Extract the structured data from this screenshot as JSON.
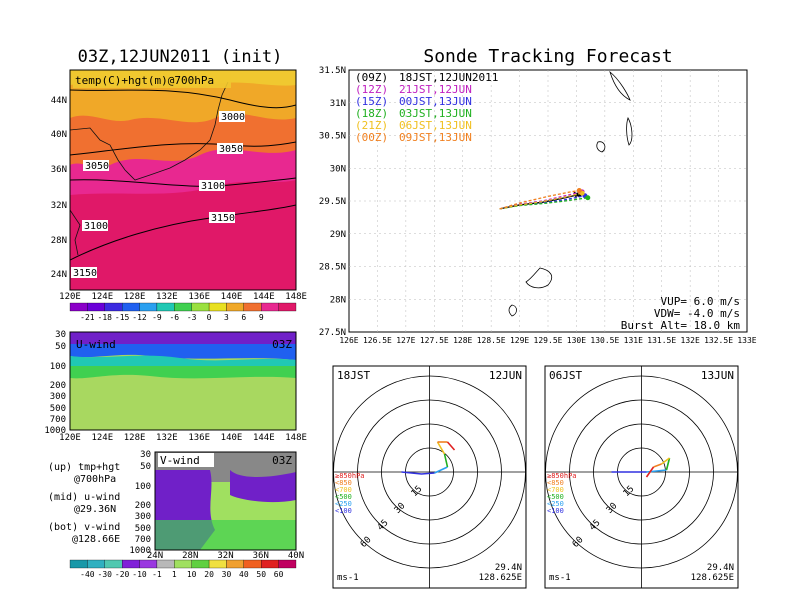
{
  "left": {
    "title": "03Z,12JUN2011 (init)",
    "map": {
      "label": "temp(C)+hgt(m)@700hPa",
      "lat_ticks": [
        "44N",
        "40N",
        "36N",
        "32N",
        "28N",
        "24N"
      ],
      "lon_ticks": [
        "120E",
        "124E",
        "128E",
        "132E",
        "136E",
        "140E",
        "144E",
        "148E"
      ],
      "contours": [
        "3000",
        "3050",
        "3050",
        "3100",
        "3100",
        "3150",
        "3150"
      ],
      "colorbar_labels": [
        "-21",
        "-18",
        "-15",
        "-12",
        "-9",
        "-6",
        "-3",
        "0",
        "3",
        "6",
        "9"
      ],
      "colorbar_colors": [
        "#8b00c8",
        "#6a00d8",
        "#3c2ae0",
        "#2060f0",
        "#2aa0f0",
        "#20c8b4",
        "#40d050",
        "#9ae040",
        "#e8e020",
        "#f0a828",
        "#f07030",
        "#e82890",
        "#e01868"
      ]
    },
    "uwind": {
      "label": "U-wind",
      "time": "03Z",
      "p_ticks": [
        "30",
        "50",
        "100",
        "200",
        "300",
        "500",
        "700",
        "1000"
      ],
      "lon_ticks": [
        "120E",
        "124E",
        "128E",
        "132E",
        "136E",
        "140E",
        "144E",
        "148E"
      ]
    },
    "vwind": {
      "label": "V-wind",
      "time": "03Z",
      "p_ticks": [
        "30",
        "50",
        "100",
        "200",
        "300",
        "500",
        "700",
        "1000"
      ],
      "lat_ticks": [
        "24N",
        "28N",
        "32N",
        "36N",
        "40N"
      ],
      "colorbar_labels": [
        "-40",
        "-30",
        "-20",
        "-10",
        "-1",
        "1",
        "10",
        "20",
        "30",
        "40",
        "50",
        "60"
      ],
      "colorbar_colors": [
        "#1898a8",
        "#30b0c0",
        "#50c8b0",
        "#8020d8",
        "#9a38e0",
        "#b8b8b8",
        "#a0e060",
        "#60d040",
        "#f0e040",
        "#f0a030",
        "#f06020",
        "#e02020",
        "#c00060"
      ]
    },
    "legend": {
      "up": "(up) tmp+hgt",
      "up_sub": "@700hPa",
      "mid": "(mid) u-wind",
      "mid_sub": "@29.36N",
      "bot": "(bot) v-wind",
      "bot_sub": "@128.66E"
    }
  },
  "right": {
    "title": "Sonde Tracking Forecast",
    "lat_ticks": [
      "31.5N",
      "31N",
      "30.5N",
      "30N",
      "29.5N",
      "29N",
      "28.5N",
      "28N",
      "27.5N"
    ],
    "lon_ticks": [
      "126E",
      "126.5E",
      "127E",
      "127.5E",
      "128E",
      "128.5E",
      "129E",
      "129.5E",
      "130E",
      "130.5E",
      "131E",
      "131.5E",
      "132E",
      "132.5E",
      "133E"
    ],
    "launches": [
      {
        "utc": "(09Z)",
        "jst": "18JST,12JUN2011",
        "color": "#000000"
      },
      {
        "utc": "(12Z)",
        "jst": "21JST,12JUN",
        "color": "#c020c0"
      },
      {
        "utc": "(15Z)",
        "jst": "00JST,13JUN",
        "color": "#3030e0"
      },
      {
        "utc": "(18Z)",
        "jst": "03JST,13JUN",
        "color": "#20b020"
      },
      {
        "utc": "(21Z)",
        "jst": "06JST,13JUN",
        "color": "#f0c020"
      },
      {
        "utc": "(00Z)",
        "jst": "09JST,13JUN",
        "color": "#f08020"
      }
    ],
    "params": {
      "vup": "VUP= 6.0 m/s",
      "vdw": "VDW= -4.0 m/s",
      "burst": "Burst Alt= 18.0 km"
    }
  },
  "hodographs": [
    {
      "time": "18JST",
      "date": "12JUN",
      "lat": "29.4N",
      "lon": "128.625E",
      "unit": "ms-1",
      "rings": [
        "15",
        "30",
        "45",
        "60"
      ],
      "levels": [
        "≥850hPa",
        "<850",
        "<700",
        "<500",
        "<250",
        "<100"
      ],
      "levels_colors": [
        "#e02020",
        "#f08020",
        "#f0c020",
        "#20b020",
        "#2aa0f0",
        "#3030e0"
      ]
    },
    {
      "time": "06JST",
      "date": "13JUN",
      "lat": "29.4N",
      "lon": "128.625E",
      "unit": "ms-1",
      "rings": [
        "15",
        "30",
        "45",
        "60"
      ],
      "levels": [
        "≥850hPa",
        "<850",
        "<700",
        "<500",
        "<250",
        "<100"
      ],
      "levels_colors": [
        "#e02020",
        "#f08020",
        "#f0c020",
        "#20b020",
        "#2aa0f0",
        "#3030e0"
      ]
    }
  ],
  "chart_data": {
    "type": "line",
    "title": "Sonde Tracking Forecast",
    "xlabel": "",
    "ylabel": "",
    "xlim": [
      126,
      133
    ],
    "ylim": [
      27.5,
      31.5
    ],
    "grid": true,
    "series": [
      {
        "name": "(09Z) 18JST,12JUN2011",
        "color": "#000000",
        "x": [
          128.65,
          129.0,
          129.4,
          129.8,
          130.05
        ],
        "y": [
          29.38,
          29.44,
          29.48,
          29.55,
          29.6
        ]
      },
      {
        "name": "(12Z) 21JST,12JUN",
        "color": "#c020c0",
        "x": [
          128.65,
          129.0,
          129.4,
          129.8,
          130.1
        ],
        "y": [
          29.38,
          29.45,
          29.5,
          29.58,
          29.64
        ]
      },
      {
        "name": "(15Z) 00JST,13JUN",
        "color": "#3030e0",
        "x": [
          128.65,
          129.0,
          129.4,
          129.8,
          130.15
        ],
        "y": [
          29.38,
          29.44,
          29.47,
          29.52,
          29.58
        ]
      },
      {
        "name": "(18Z) 03JST,13JUN",
        "color": "#20b020",
        "x": [
          128.65,
          129.0,
          129.4,
          129.8,
          130.2
        ],
        "y": [
          29.38,
          29.43,
          29.46,
          29.5,
          29.55
        ]
      },
      {
        "name": "(21Z) 06JST,13JUN",
        "color": "#f0c020",
        "x": [
          128.65,
          129.0,
          129.4,
          129.8,
          130.1
        ],
        "y": [
          29.38,
          29.44,
          29.49,
          29.56,
          29.62
        ]
      },
      {
        "name": "(00Z) 09JST,13JUN",
        "color": "#f08020",
        "x": [
          128.65,
          129.0,
          129.5,
          129.9,
          130.05
        ],
        "y": [
          29.38,
          29.47,
          29.57,
          29.64,
          29.66
        ]
      }
    ]
  }
}
